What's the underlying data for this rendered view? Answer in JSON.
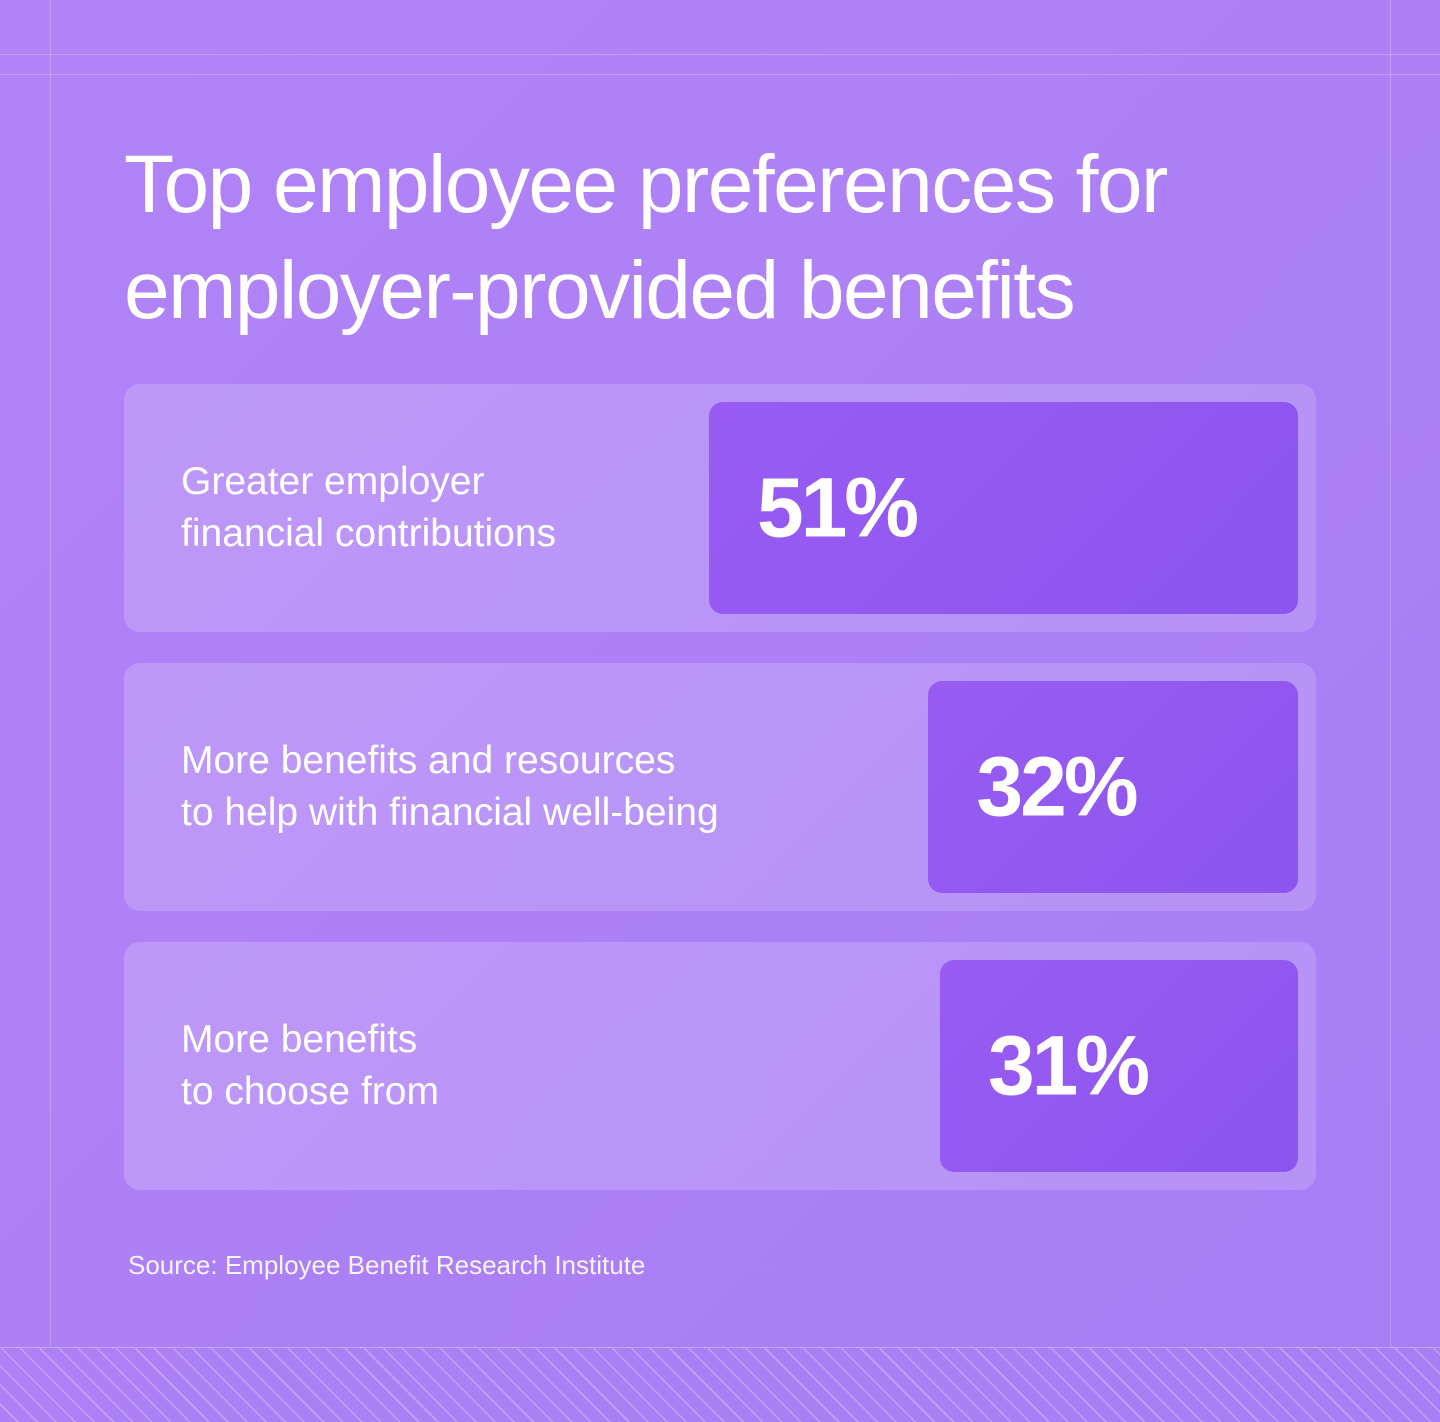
{
  "chart_data": {
    "type": "bar",
    "orientation": "horizontal",
    "title": "Top employee preferences for employer-provided benefits",
    "categories": [
      "Greater employer financial contributions",
      "More benefits and resources to help with financial well-being",
      "More benefits to choose from"
    ],
    "category_lines": [
      [
        "Greater employer",
        "financial contributions"
      ],
      [
        "More benefits and resources",
        "to help with financial well-being"
      ],
      [
        "More benefits",
        "to choose from"
      ]
    ],
    "values": [
      51,
      32,
      31
    ],
    "value_labels": [
      "51%",
      "32%",
      "31%"
    ],
    "unit": "%",
    "source": "Source: Employee Benefit Research Institute",
    "colors": {
      "background": "#ae82f5",
      "card": "#ba95f7",
      "bar": "#9158f0",
      "text": "#ffffff"
    }
  }
}
